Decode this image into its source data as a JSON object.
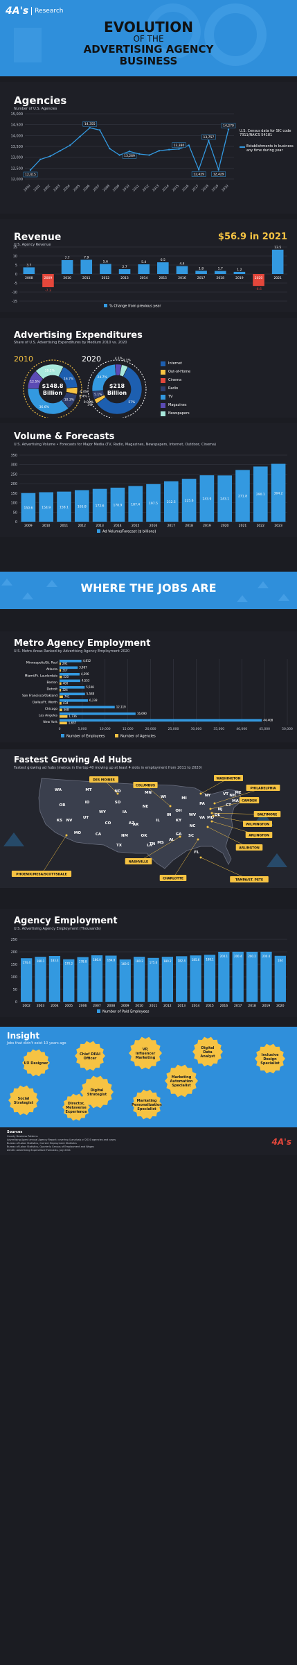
{
  "header": {
    "brand_mark": "4A's",
    "brand_name": "Research",
    "title_line1": "EVOLUTION",
    "title_line2": "OF THE",
    "title_line3": "ADVERTISING AGENCY",
    "title_line4": "BUSINESS"
  },
  "agencies": {
    "title": "Agencies",
    "subtitle": "Number of U.S. Agencies",
    "note": "U.S. Census data for SIC code 7311/NAICS 54181",
    "legend": "Establishments in business any time during year"
  },
  "revenue": {
    "title": "Revenue",
    "subtitle": "U.S. Agency Revenue",
    "headline": "$56.9 in 2021",
    "legend": "% Change from previous year"
  },
  "expenditures": {
    "title": "Advertising Expenditures",
    "subtitle": "Share of U.S. Advertising Expenditures by Medium 2010 vs. 2020",
    "label_2010": "2010",
    "label_2020": "2020",
    "center_2010_line1": "$148.8",
    "center_2010_line2": "Billion",
    "center_2020_line1": "$218",
    "center_2020_line2": "Billion",
    "legend": [
      "Internet",
      "Out-of-Home",
      "Cinema",
      "Radio",
      "TV",
      "Magazines",
      "Newspapers"
    ]
  },
  "volume": {
    "title": "Volume & Forecasts",
    "subtitle": "U.S. Advertising Volume • Forecasts for Major Media (TV, Radio, Magazines, Newspapers, Internet, Outdoor, Cinema)",
    "legend": "Ad Volume/Forecast ($ billions)"
  },
  "jobs_banner": "WHERE THE JOBS ARE",
  "metro": {
    "title": "Metro Agency Employment",
    "subtitle": "U.S. Metro Areas Ranked by Advertising Agency Employment 2020",
    "legend_employees": "Number of Employees",
    "legend_agencies": "Number of Agencies"
  },
  "hubs": {
    "title": "Fastest Growing Ad Hubs",
    "subtitle": "Fastest growing ad hubs (metros in the top 40 moving up at least 4 slots in employment from 2011 to 2020)",
    "callouts": [
      "DES MOINES",
      "WASHINGTON",
      "COLUMBUS",
      "CAMDEN",
      "PHILADELPHIA",
      "BALTIMORE",
      "WILMINGTON",
      "ARLINGTON",
      "ARLINGTON",
      "NASHVILLE",
      "PHOENIX/MESA/SCOTTSDALE",
      "CHARLOTTE",
      "TAMPA/ST. PETE"
    ],
    "states": [
      "WA",
      "MT",
      "ND",
      "MN",
      "OR",
      "ID",
      "SD",
      "WI",
      "MI",
      "WY",
      "IA",
      "NE",
      "NV",
      "UT",
      "CO",
      "KS",
      "MO",
      "CA",
      "AZ",
      "NM",
      "OK",
      "AR",
      "TN",
      "TX",
      "LA",
      "MS",
      "AL",
      "GA",
      "FL",
      "SC",
      "NC",
      "VA",
      "WV",
      "KY",
      "IN",
      "IL",
      "OH",
      "PA",
      "NY",
      "ME",
      "VT",
      "NH",
      "MA",
      "CT",
      "NJ",
      "DE",
      "MD"
    ]
  },
  "employment": {
    "title": "Agency Employment",
    "subtitle": "U.S. Advertising Agency Employment (Thousands)",
    "legend": "Number of Paid Employees"
  },
  "insight": {
    "title": "Insight",
    "subtitle": "Jobs that didn't exist 10 years ago",
    "jobs": [
      "UX Designer",
      "Chief DE&I Officer",
      "VP, Influencer Marketing",
      "Digital Data Analyst",
      "Inclusive Design Specialist",
      "Marketing Automation Specialist",
      "Digital Strategist",
      "Social Strategist",
      "Director, Metaverse Experience",
      "Marketing Personalization Specialist"
    ]
  },
  "sources": {
    "title": "Sources",
    "lines": [
      "County Business Patterns",
      "Advertising Agent annual Agency Report; covering 4-analysis of 2020 agencies and cases",
      "Bureau of Labor Statistics, Current Employment Statistics",
      "Bureau of Labor Statistics, Quarterly Census of Employment and Wages",
      "Zenith: Advertising Expenditure Forecasts, July 2021"
    ]
  },
  "colors": {
    "accent": "#3399e0",
    "bg": "#1b1c22",
    "banner": "#2f8fdb",
    "yellow": "#f6c343",
    "negative": "#e4473b",
    "purple": "#5b4bb5"
  },
  "chart_data": [
    {
      "type": "line",
      "title": "Agencies",
      "x": [
        "2000",
        "2001",
        "2002",
        "2003",
        "2004",
        "2005",
        "2006",
        "2007",
        "2008",
        "2009",
        "2010",
        "2011",
        "2012",
        "2013",
        "2014",
        "2015",
        "2016",
        "2017",
        "2018",
        "2019",
        "2020"
      ],
      "values": [
        12415,
        12900,
        13050,
        13300,
        13550,
        13950,
        14355,
        14250,
        13400,
        13100,
        13269,
        13150,
        13100,
        13300,
        13350,
        13380,
        13550,
        12429,
        13757,
        12429,
        14279
      ],
      "data_labels": [
        "12,415",
        "",
        "",
        "",
        "",
        "",
        "14,355",
        "",
        "",
        "",
        "13,269",
        "",
        "",
        "",
        "",
        "13,380",
        "",
        "12,429",
        "13,757",
        "12,429",
        "14,279"
      ],
      "ylim": [
        12000,
        15000
      ],
      "yticks": [
        "12,000",
        "12,500",
        "13,000",
        "13,500",
        "14,000",
        "14,500",
        "15,000"
      ]
    },
    {
      "type": "bar",
      "title": "Revenue",
      "categories": [
        "2008",
        "2009",
        "2010",
        "2011",
        "2012",
        "2013",
        "2014",
        "2015",
        "2016",
        "2017",
        "2018",
        "2019",
        "2020",
        "2021"
      ],
      "values": [
        3.7,
        -7.3,
        7.7,
        7.9,
        5.6,
        2.7,
        5.4,
        6.5,
        4.4,
        1.8,
        1.7,
        1.2,
        -6.6,
        13.5
      ],
      "data_labels": [
        "3.7",
        "-7.3",
        "7.7",
        "7.9",
        "5.6",
        "2.7",
        "5.4",
        "6.5",
        "4.4",
        "1.8",
        "1.7",
        "1.2",
        "-6.6",
        "13.5"
      ],
      "ylim": [
        -15,
        15
      ],
      "yticks": [
        "-15",
        "-10",
        "-5",
        "0",
        "5",
        "10",
        "15"
      ]
    },
    {
      "type": "pie",
      "title": "2010",
      "labels": [
        "Internet",
        "Out-of-Home",
        "Cinema",
        "Radio",
        "TV",
        "Magazines",
        "Newspapers"
      ],
      "values": [
        16.7,
        4.4,
        0.4,
        10.3,
        36.6,
        12.5,
        19.2
      ]
    },
    {
      "type": "pie",
      "title": "2020",
      "labels": [
        "Internet",
        "Out-of-Home",
        "Cinema",
        "Radio",
        "TV",
        "Magazines",
        "Newspapers"
      ],
      "values": [
        57,
        3,
        0.08,
        5.1,
        24.7,
        4.1,
        4.1
      ]
    },
    {
      "type": "bar",
      "title": "Volume & Forecasts",
      "categories": [
        "2009",
        "2010",
        "2011",
        "2012",
        "2013",
        "2014",
        "2015",
        "2016",
        "2017",
        "2018",
        "2019",
        "2020",
        "2021",
        "2022",
        "2023"
      ],
      "values": [
        150.6,
        154.9,
        158.1,
        165.8,
        172.6,
        178.9,
        187.4,
        197.5,
        212.5,
        225.6,
        243.9,
        243.1,
        271.8,
        290.1,
        304.2
      ],
      "data_labels": [
        "150.6",
        "154.9",
        "158.1",
        "165.8",
        "172.6",
        "178.9",
        "187.4",
        "197.5",
        "212.5",
        "225.6",
        "243.9",
        "243.1",
        "271.8",
        "290.1",
        "304.2"
      ],
      "ylim": [
        0,
        350
      ],
      "yticks": [
        "0",
        "50",
        "100",
        "150",
        "200",
        "250",
        "300",
        "350"
      ]
    },
    {
      "type": "bar",
      "title": "Metro Agency Employment",
      "orientation": "horizontal",
      "categories": [
        "Minneapolis/St. Paul",
        "Atlanta",
        "Miami/Ft. Lauderdale",
        "Boston",
        "Detroit",
        "San Francisco/Oakland",
        "Dallas/Ft. Worth",
        "Chicago",
        "Los Angeles",
        "New York"
      ],
      "series": [
        {
          "name": "Number of Employees",
          "values": [
            4812,
            3987,
            4396,
            4553,
            5508,
            5588,
            6238,
            12119,
            16690,
            44408
          ],
          "data_labels": [
            "4,812",
            "3,987",
            "4,396",
            "4,553",
            "5,508",
            "5,588",
            "6,238",
            "12,119",
            "16,690",
            "44,408"
          ]
        },
        {
          "name": "Number of Agencies",
          "values": [
            291,
            317,
            520,
            400,
            324,
            741,
            434,
            568,
            1736,
            1637
          ],
          "data_labels": [
            "291",
            "317",
            "520",
            "400",
            "324",
            "741",
            "434",
            "568",
            "1,736",
            "1,637"
          ]
        }
      ],
      "xlim": [
        0,
        50000
      ],
      "xticks": [
        "0",
        "5,000",
        "10,000",
        "15,000",
        "20,000",
        "25,000",
        "30,000",
        "35,000",
        "40,000",
        "45,000",
        "50,000"
      ]
    },
    {
      "type": "bar",
      "title": "Agency Employment",
      "categories": [
        "2002",
        "2003",
        "2004",
        "2005",
        "2006",
        "2007",
        "2008",
        "2009",
        "2010",
        "2011",
        "2012",
        "2013",
        "2014",
        "2015",
        "2016",
        "2017",
        "2018",
        "2019",
        "2020"
      ],
      "values": [
        174.4,
        180.1,
        183.4,
        170.2,
        178.8,
        186.0,
        184.8,
        169.5,
        180.2,
        175.6,
        180.2,
        182.4,
        185.6,
        188.1,
        200.1,
        200.4,
        200.2,
        200.4,
        184
      ],
      "data_labels": [
        "174.4",
        "180.1",
        "183.4",
        "170.2",
        "178.8",
        "186.0",
        "184.8",
        "169.5",
        "180.2",
        "175.6",
        "180.2",
        "182.4",
        "185.6",
        "188.1",
        "200.1",
        "200.4",
        "200.2",
        "200.4",
        "184"
      ],
      "ylim": [
        0,
        250
      ],
      "yticks": [
        "0",
        "50",
        "100",
        "150",
        "200",
        "250"
      ]
    }
  ]
}
